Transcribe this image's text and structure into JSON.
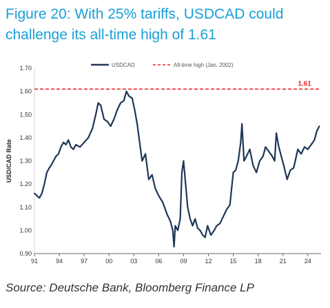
{
  "figure": {
    "title": "Figure 20: With 25% tariffs, USDCAD could challenge its all-time high of 1.61",
    "source": "Source: Deutsche Bank, Bloomberg Finance LP"
  },
  "colors": {
    "series": "#1d3557",
    "reference": "#e8262c",
    "title": "#1aa0d8"
  },
  "chart_data": {
    "type": "line",
    "ylabel": "USD/CAD Rate",
    "xlabel": "",
    "xlim": [
      1991.0,
      2025.6
    ],
    "ylim": [
      0.9,
      1.7
    ],
    "yticks": [
      0.9,
      1.0,
      1.1,
      1.2,
      1.3,
      1.4,
      1.5,
      1.6,
      1.7
    ],
    "ytick_labels": [
      "0.90",
      "1.00",
      "1.10",
      "1.20",
      "1.30",
      "1.40",
      "1.50",
      "1.60",
      "1.70"
    ],
    "xticks": [
      1991,
      1994,
      1997,
      2000,
      2003,
      2006,
      2009,
      2012,
      2015,
      2018,
      2021,
      2024
    ],
    "xtick_labels": [
      "91",
      "94",
      "97",
      "00",
      "03",
      "06",
      "09",
      "12",
      "15",
      "18",
      "21",
      "24"
    ],
    "legend_position": "top",
    "series": [
      {
        "name": "USDCAD",
        "style": "solid",
        "x": [
          1991.0,
          1991.3,
          1991.6,
          1991.9,
          1992.2,
          1992.5,
          1992.8,
          1993.0,
          1993.3,
          1993.6,
          1993.9,
          1994.2,
          1994.5,
          1994.8,
          1995.1,
          1995.4,
          1995.7,
          1996.0,
          1996.5,
          1997.0,
          1997.5,
          1998.0,
          1998.4,
          1998.7,
          1999.0,
          1999.4,
          1999.8,
          2000.2,
          2000.6,
          2001.0,
          2001.4,
          2001.8,
          2002.1,
          2002.4,
          2002.8,
          2003.1,
          2003.4,
          2003.7,
          2004.0,
          2004.4,
          2004.8,
          2005.2,
          2005.6,
          2006.0,
          2006.5,
          2007.0,
          2007.4,
          2007.7,
          2007.85,
          2008.0,
          2008.3,
          2008.6,
          2008.8,
          2009.0,
          2009.2,
          2009.5,
          2009.8,
          2010.1,
          2010.4,
          2010.7,
          2011.0,
          2011.3,
          2011.6,
          2011.9,
          2012.3,
          2012.7,
          2013.0,
          2013.4,
          2013.8,
          2014.2,
          2014.6,
          2015.0,
          2015.3,
          2015.6,
          2015.9,
          2016.05,
          2016.3,
          2016.6,
          2017.0,
          2017.4,
          2017.8,
          2018.2,
          2018.6,
          2018.9,
          2019.3,
          2019.7,
          2020.0,
          2020.2,
          2020.5,
          2020.8,
          2021.1,
          2021.5,
          2021.9,
          2022.3,
          2022.8,
          2023.2,
          2023.6,
          2024.0,
          2024.4,
          2024.8,
          2025.1,
          2025.4
        ],
        "y": [
          1.16,
          1.15,
          1.14,
          1.16,
          1.2,
          1.25,
          1.27,
          1.28,
          1.3,
          1.32,
          1.33,
          1.36,
          1.38,
          1.37,
          1.39,
          1.36,
          1.35,
          1.37,
          1.36,
          1.38,
          1.4,
          1.44,
          1.5,
          1.55,
          1.54,
          1.48,
          1.47,
          1.45,
          1.48,
          1.52,
          1.55,
          1.56,
          1.6,
          1.58,
          1.57,
          1.52,
          1.46,
          1.38,
          1.3,
          1.33,
          1.22,
          1.24,
          1.18,
          1.15,
          1.12,
          1.07,
          1.04,
          1.0,
          0.93,
          1.02,
          1.0,
          1.05,
          1.25,
          1.3,
          1.22,
          1.1,
          1.05,
          1.02,
          1.05,
          1.01,
          1.0,
          0.98,
          0.97,
          1.02,
          0.98,
          1.0,
          1.02,
          1.03,
          1.06,
          1.09,
          1.11,
          1.25,
          1.26,
          1.3,
          1.38,
          1.46,
          1.3,
          1.32,
          1.35,
          1.28,
          1.25,
          1.3,
          1.32,
          1.36,
          1.34,
          1.32,
          1.3,
          1.42,
          1.36,
          1.32,
          1.28,
          1.22,
          1.26,
          1.27,
          1.35,
          1.33,
          1.36,
          1.35,
          1.37,
          1.39,
          1.43,
          1.45
        ]
      },
      {
        "name": "All-time high (Jan. 2002)",
        "style": "dashed",
        "x": [
          1991.0,
          2025.6
        ],
        "y": [
          1.61,
          1.61
        ]
      }
    ],
    "annotations": [
      {
        "text": "1.61",
        "x": 2022.8,
        "y": 1.61
      }
    ]
  }
}
